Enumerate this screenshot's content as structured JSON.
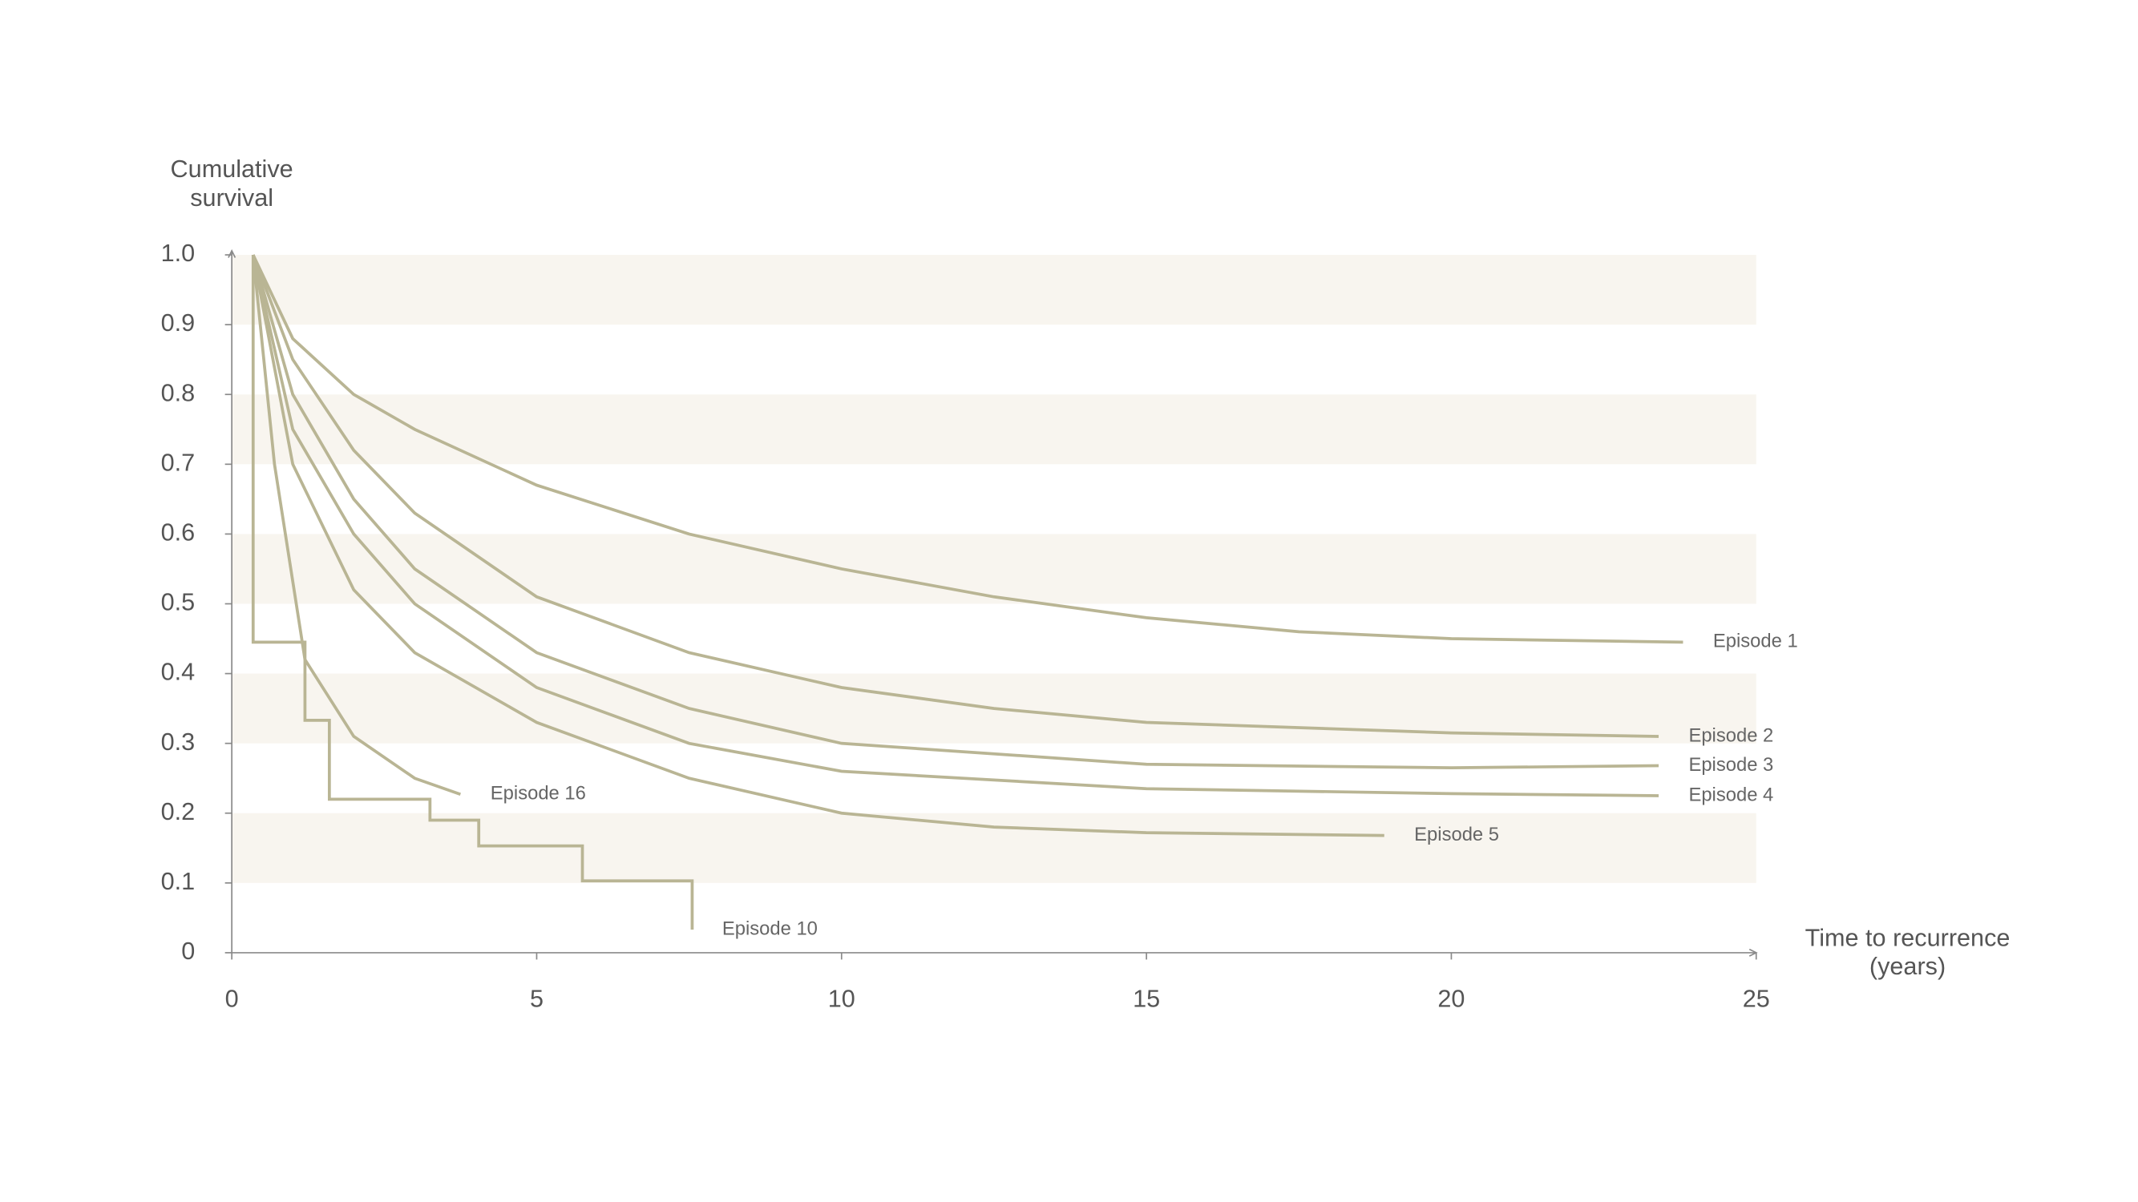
{
  "chart_data": {
    "type": "line",
    "xlabel": "Time to recurrence (years)",
    "ylabel": "Cumulative survival",
    "xlim": [
      0,
      25
    ],
    "xticks": [
      0,
      5,
      10,
      15,
      20,
      25
    ],
    "ylim": [
      0,
      1
    ],
    "yticks": [
      0,
      0.1,
      0.2,
      0.3,
      0.4,
      0.5,
      0.6,
      0.7,
      0.8,
      0.9,
      {
        "value": 1,
        "label": "1.0"
      }
    ],
    "banded_grid": true,
    "band_color": "#f8f5ef",
    "axis_color": "#8a8a8a",
    "series": [
      {
        "name": "Episode 1",
        "color": "#b9b594",
        "x": [
          0.35,
          1,
          2,
          3,
          5,
          7.5,
          10,
          12.5,
          15,
          17.5,
          20,
          23.8
        ],
        "values": [
          1,
          0.88,
          0.8,
          0.75,
          0.67,
          0.6,
          0.55,
          0.51,
          0.48,
          0.46,
          0.45,
          0.445
        ]
      },
      {
        "name": "Episode 2",
        "color": "#b9b594",
        "x": [
          0.35,
          1,
          2,
          3,
          5,
          7.5,
          10,
          12.5,
          15,
          20,
          23.4
        ],
        "values": [
          1,
          0.85,
          0.72,
          0.63,
          0.51,
          0.43,
          0.38,
          0.35,
          0.33,
          0.315,
          0.31
        ]
      },
      {
        "name": "Episode 3",
        "color": "#b9b594",
        "x": [
          0.35,
          1,
          2,
          3,
          5,
          7.5,
          10,
          15,
          20,
          23.4
        ],
        "values": [
          1,
          0.8,
          0.65,
          0.55,
          0.43,
          0.35,
          0.3,
          0.27,
          0.265,
          0.268
        ]
      },
      {
        "name": "Episode 4",
        "color": "#b9b594",
        "x": [
          0.35,
          1,
          2,
          3,
          5,
          7.5,
          10,
          15,
          20,
          23.4
        ],
        "values": [
          1,
          0.75,
          0.6,
          0.5,
          0.38,
          0.3,
          0.26,
          0.235,
          0.228,
          0.225
        ]
      },
      {
        "name": "Episode 5",
        "color": "#b9b594",
        "x": [
          0.35,
          1,
          2,
          3,
          5,
          7.5,
          10,
          12.5,
          15,
          18.9
        ],
        "values": [
          1,
          0.7,
          0.52,
          0.43,
          0.33,
          0.25,
          0.2,
          0.18,
          0.172,
          0.168
        ]
      },
      {
        "name": "Episode 16",
        "color": "#b9b594",
        "x": [
          0.35,
          0.7,
          1.2,
          2,
          3,
          3.75
        ],
        "values": [
          1,
          0.7,
          0.42,
          0.31,
          0.25,
          0.227
        ]
      },
      {
        "name": "Episode 10",
        "color": "#b9b594",
        "x": [
          0.35,
          0.35,
          1.2,
          1.2,
          1.6,
          1.6,
          3.25,
          3.25,
          4.05,
          4.05,
          5.75,
          5.75,
          7.55,
          7.55
        ],
        "values": [
          1,
          0.445,
          0.445,
          0.333,
          0.333,
          0.22,
          0.22,
          0.19,
          0.19,
          0.153,
          0.153,
          0.103,
          0.103,
          0.033
        ]
      }
    ]
  }
}
